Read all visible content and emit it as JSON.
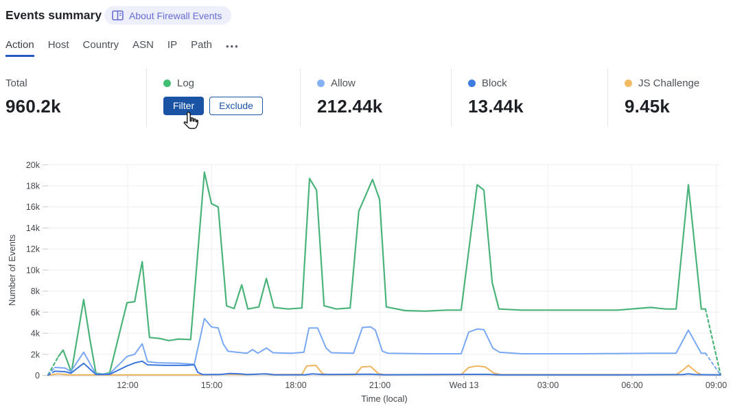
{
  "header": {
    "title": "Events summary",
    "about_label": "About Firewall Events"
  },
  "tabs": {
    "items": [
      {
        "label": "Action",
        "active": true
      },
      {
        "label": "Host",
        "active": false
      },
      {
        "label": "Country",
        "active": false
      },
      {
        "label": "ASN",
        "active": false
      },
      {
        "label": "IP",
        "active": false
      },
      {
        "label": "Path",
        "active": false
      }
    ],
    "more_label": "•••"
  },
  "stats": {
    "items": [
      {
        "label": "Total",
        "value": "960.2k"
      },
      {
        "label": "Log",
        "dot": "#3fbf73",
        "buttons": {
          "filter": "Filter",
          "exclude": "Exclude"
        }
      },
      {
        "label": "Allow",
        "dot": "#85b1f5",
        "value": "212.44k"
      },
      {
        "label": "Block",
        "dot": "#3f7ce0",
        "value": "13.44k"
      },
      {
        "label": "JS Challenge",
        "dot": "#f2ba62",
        "value": "9.45k"
      }
    ]
  },
  "chart_data": {
    "type": "line",
    "xlabel": "Time (local)",
    "ylabel": "Number of Events",
    "ylim_k": [
      0,
      20
    ],
    "x_unit": "hours from chart start (~09:10 local, 24h span)",
    "grid": true,
    "legend_position": "stats row above chart",
    "yticks": [
      {
        "v": 0,
        "label": "0"
      },
      {
        "v": 2,
        "label": "2k"
      },
      {
        "v": 4,
        "label": "4k"
      },
      {
        "v": 6,
        "label": "6k"
      },
      {
        "v": 8,
        "label": "8k"
      },
      {
        "v": 10,
        "label": "10k"
      },
      {
        "v": 12,
        "label": "12k"
      },
      {
        "v": 14,
        "label": "14k"
      },
      {
        "v": 16,
        "label": "16k"
      },
      {
        "v": 18,
        "label": "18k"
      },
      {
        "v": 20,
        "label": "20k"
      }
    ],
    "xticks": [
      {
        "h": 2.841,
        "label": "12:00"
      },
      {
        "h": 5.841,
        "label": "15:00"
      },
      {
        "h": 8.841,
        "label": "18:00"
      },
      {
        "h": 11.841,
        "label": "21:00"
      },
      {
        "h": 14.841,
        "label": "Wed 13"
      },
      {
        "h": 17.841,
        "label": "03:00"
      },
      {
        "h": 20.841,
        "label": "06:00"
      },
      {
        "h": 23.841,
        "label": "09:00"
      }
    ],
    "series": [
      {
        "name": "Log",
        "color": "#49b379",
        "width": 2.2,
        "head": [
          [
            0,
            0.05
          ],
          [
            0.37,
            1.8
          ]
        ],
        "main": [
          [
            0.37,
            1.8
          ],
          [
            0.54,
            2.4
          ],
          [
            0.71,
            1.2
          ],
          [
            0.83,
            0.25
          ],
          [
            1.27,
            7.2
          ],
          [
            1.49,
            3.5
          ],
          [
            1.71,
            0.2
          ],
          [
            1.96,
            0.12
          ],
          [
            2.2,
            0.25
          ],
          [
            2.82,
            6.9
          ],
          [
            3.09,
            7.0
          ],
          [
            3.36,
            10.8
          ],
          [
            3.62,
            3.6
          ],
          [
            3.99,
            3.5
          ],
          [
            4.31,
            3.3
          ],
          [
            4.65,
            3.45
          ],
          [
            5.09,
            3.4
          ],
          [
            5.58,
            19.3
          ],
          [
            5.83,
            16.3
          ],
          [
            6.07,
            16.0
          ],
          [
            6.37,
            6.6
          ],
          [
            6.64,
            6.35
          ],
          [
            6.91,
            8.6
          ],
          [
            7.13,
            6.3
          ],
          [
            7.52,
            6.5
          ],
          [
            7.79,
            9.2
          ],
          [
            8.06,
            6.45
          ],
          [
            8.57,
            6.3
          ],
          [
            9.06,
            6.4
          ],
          [
            9.33,
            18.7
          ],
          [
            9.58,
            17.6
          ],
          [
            9.85,
            6.6
          ],
          [
            10.29,
            6.3
          ],
          [
            10.78,
            6.4
          ],
          [
            11.09,
            15.6
          ],
          [
            11.58,
            18.6
          ],
          [
            11.83,
            16.7
          ],
          [
            12.07,
            6.5
          ],
          [
            12.74,
            6.15
          ],
          [
            13.47,
            6.1
          ],
          [
            14.21,
            6.2
          ],
          [
            14.74,
            6.2
          ],
          [
            15.31,
            18.1
          ],
          [
            15.55,
            17.6
          ],
          [
            15.85,
            8.8
          ],
          [
            16.09,
            6.3
          ],
          [
            16.9,
            6.2
          ],
          [
            17.88,
            6.2
          ],
          [
            19.1,
            6.2
          ],
          [
            20.33,
            6.2
          ],
          [
            21.5,
            6.45
          ],
          [
            22.04,
            6.3
          ],
          [
            22.41,
            6.3
          ],
          [
            22.85,
            18.1
          ],
          [
            23.31,
            6.3
          ],
          [
            23.46,
            6.3
          ]
        ],
        "tail": [
          [
            23.46,
            6.3
          ],
          [
            24,
            0.05
          ]
        ]
      },
      {
        "name": "Allow",
        "color": "#78a7f3",
        "width": 2,
        "head": [
          [
            0,
            0.02
          ],
          [
            0.24,
            0.75
          ]
        ],
        "main": [
          [
            0.24,
            0.75
          ],
          [
            0.61,
            0.7
          ],
          [
            0.81,
            0.35
          ],
          [
            1.27,
            2.2
          ],
          [
            1.71,
            0.12
          ],
          [
            2.2,
            0.15
          ],
          [
            2.82,
            1.8
          ],
          [
            3.09,
            2.0
          ],
          [
            3.36,
            3.0
          ],
          [
            3.55,
            1.3
          ],
          [
            3.92,
            1.2
          ],
          [
            4.65,
            1.15
          ],
          [
            5.22,
            1.05
          ],
          [
            5.58,
            5.4
          ],
          [
            5.83,
            4.6
          ],
          [
            6.07,
            4.5
          ],
          [
            6.25,
            3.0
          ],
          [
            6.42,
            2.3
          ],
          [
            6.73,
            2.2
          ],
          [
            7.1,
            2.1
          ],
          [
            7.3,
            2.45
          ],
          [
            7.49,
            2.1
          ],
          [
            7.79,
            2.6
          ],
          [
            8.03,
            2.15
          ],
          [
            8.69,
            2.1
          ],
          [
            9.13,
            2.2
          ],
          [
            9.31,
            4.5
          ],
          [
            9.62,
            4.5
          ],
          [
            9.92,
            2.6
          ],
          [
            10.11,
            2.15
          ],
          [
            10.9,
            2.1
          ],
          [
            11.22,
            4.55
          ],
          [
            11.51,
            4.6
          ],
          [
            11.68,
            4.3
          ],
          [
            11.93,
            2.3
          ],
          [
            12.12,
            2.1
          ],
          [
            13.47,
            2.05
          ],
          [
            14.74,
            2.05
          ],
          [
            15.01,
            4.1
          ],
          [
            15.31,
            4.4
          ],
          [
            15.55,
            4.35
          ],
          [
            15.87,
            2.6
          ],
          [
            16.11,
            2.2
          ],
          [
            16.9,
            2.05
          ],
          [
            19.1,
            2.05
          ],
          [
            21.55,
            2.1
          ],
          [
            22.41,
            2.1
          ],
          [
            22.85,
            4.3
          ],
          [
            23.14,
            2.9
          ],
          [
            23.31,
            2.1
          ],
          [
            23.46,
            2.1
          ]
        ],
        "tail": [
          [
            23.46,
            2.1
          ],
          [
            24,
            0.02
          ]
        ]
      },
      {
        "name": "JS Challenge",
        "color": "#f0b45c",
        "width": 2,
        "head": [],
        "main": [
          [
            0,
            0.01
          ],
          [
            0.37,
            0.15
          ],
          [
            0.73,
            0.05
          ],
          [
            5.5,
            0.05
          ],
          [
            6.37,
            0.12
          ],
          [
            6.98,
            0.08
          ],
          [
            7.35,
            0.1
          ],
          [
            7.72,
            0.15
          ],
          [
            7.96,
            0.07
          ],
          [
            9.06,
            0.1
          ],
          [
            9.23,
            0.9
          ],
          [
            9.55,
            0.95
          ],
          [
            9.8,
            0.15
          ],
          [
            10.04,
            0.07
          ],
          [
            10.97,
            0.08
          ],
          [
            11.19,
            0.8
          ],
          [
            11.51,
            0.85
          ],
          [
            11.8,
            0.15
          ],
          [
            12.0,
            0.07
          ],
          [
            14.74,
            0.08
          ],
          [
            15.01,
            0.75
          ],
          [
            15.31,
            0.9
          ],
          [
            15.6,
            0.8
          ],
          [
            15.92,
            0.2
          ],
          [
            16.16,
            0.07
          ],
          [
            22.41,
            0.07
          ],
          [
            22.65,
            0.5
          ],
          [
            22.85,
            0.95
          ],
          [
            23.14,
            0.3
          ],
          [
            23.31,
            0.07
          ],
          [
            24,
            0.05
          ]
        ],
        "tail": []
      },
      {
        "name": "Block",
        "color": "#3b76da",
        "width": 2,
        "head": [
          [
            0,
            0.01
          ],
          [
            0.24,
            0.4
          ]
        ],
        "main": [
          [
            0.24,
            0.4
          ],
          [
            0.61,
            0.35
          ],
          [
            0.81,
            0.2
          ],
          [
            1.27,
            1.15
          ],
          [
            1.71,
            0.08
          ],
          [
            2.2,
            0.1
          ],
          [
            2.82,
            0.9
          ],
          [
            3.11,
            1.2
          ],
          [
            3.36,
            1.35
          ],
          [
            3.55,
            1.0
          ],
          [
            4.16,
            0.95
          ],
          [
            4.9,
            0.95
          ],
          [
            5.22,
            1.0
          ],
          [
            5.34,
            0.3
          ],
          [
            5.51,
            0.08
          ],
          [
            6.12,
            0.08
          ],
          [
            6.49,
            0.18
          ],
          [
            6.86,
            0.15
          ],
          [
            7.1,
            0.08
          ],
          [
            7.47,
            0.12
          ],
          [
            7.79,
            0.15
          ],
          [
            8.08,
            0.06
          ],
          [
            9.18,
            0.06
          ],
          [
            9.43,
            0.15
          ],
          [
            9.8,
            0.08
          ],
          [
            11.51,
            0.12
          ],
          [
            12.0,
            0.06
          ],
          [
            15.19,
            0.1
          ],
          [
            15.68,
            0.1
          ],
          [
            16.16,
            0.05
          ],
          [
            20.33,
            0.05
          ],
          [
            22.65,
            0.08
          ],
          [
            22.85,
            0.15
          ],
          [
            23.07,
            0.08
          ],
          [
            24,
            0.05
          ]
        ],
        "tail": []
      }
    ]
  }
}
